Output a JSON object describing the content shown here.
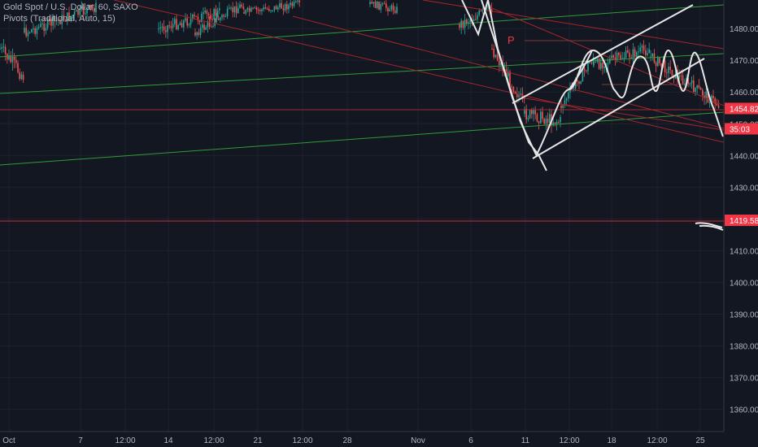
{
  "legend": {
    "symbol": "Gold Spot / U.S. Dollar, 60, SAXO",
    "indicator": "Pivots (Traditional, Auto, 15)"
  },
  "colors": {
    "background": "#131722",
    "grid": "#1e222d",
    "axis_text": "#b2b5be",
    "candle_up": "#26a69a",
    "candle_down": "#ef5350",
    "trend_green": "#2e9c3a",
    "trend_red": "#a3262b",
    "drawing_white": "#e6e6e6",
    "price_label_bg": "#f23645",
    "price_label_text": "#ffffff"
  },
  "chart_data": {
    "type": "candlestick",
    "instrument": "Gold Spot / U.S. Dollar",
    "timeframe": "60",
    "source": "SAXO",
    "ylim": [
      1353,
      1489
    ],
    "y_ticks": [
      1360,
      1370,
      1380,
      1390,
      1400,
      1410,
      1420,
      1430,
      1440,
      1450,
      1460,
      1470,
      1480
    ],
    "x_tick_labels": [
      "Oct",
      "7",
      "12:00",
      "14",
      "12:00",
      "21",
      "12:00",
      "28",
      "Nov",
      "6",
      "11",
      "12:00",
      "18",
      "12:00",
      "25"
    ],
    "price_labels": [
      {
        "value": 1454.82,
        "text": "1454.82"
      },
      {
        "value": 1452.0,
        "text": "35:03"
      },
      {
        "value": 1419.58,
        "text": "1419.58"
      }
    ],
    "pivot_marker": {
      "text": "P",
      "value": 1477
    }
  }
}
